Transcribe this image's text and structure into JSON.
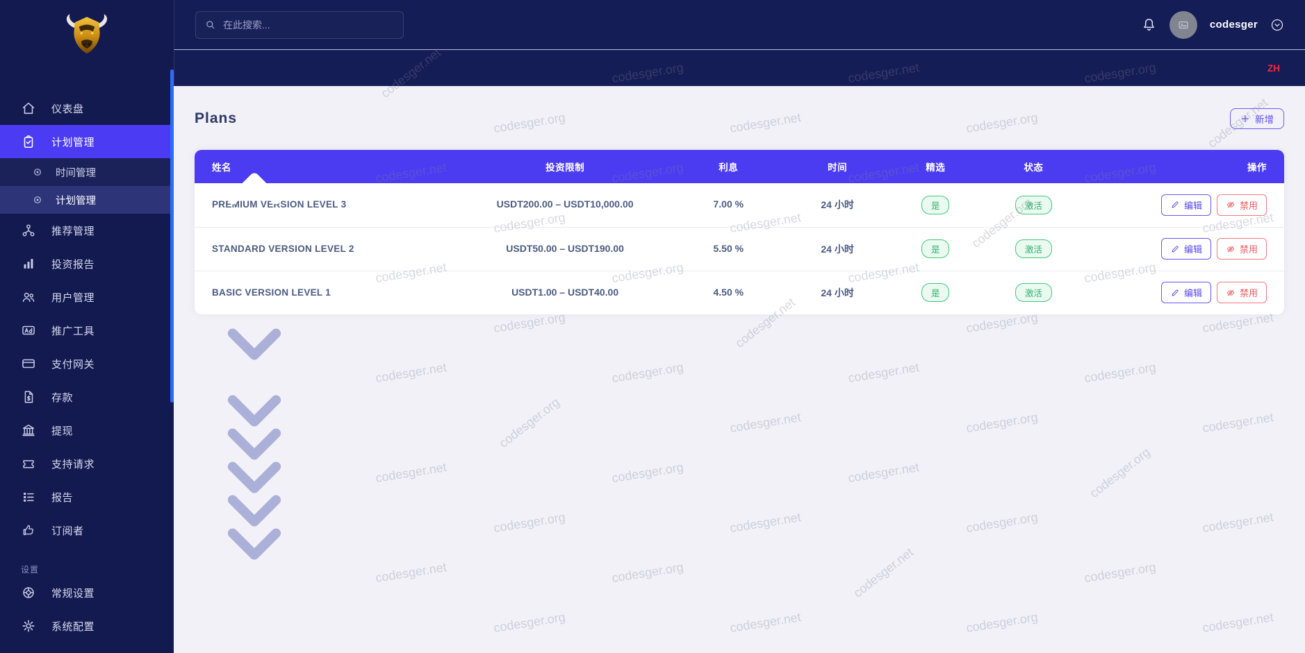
{
  "app": {
    "language_badge": "ZH",
    "watermarks": [
      "codesger.net",
      "codesger.org"
    ]
  },
  "header": {
    "search_placeholder": "在此搜索...",
    "username": "codesger"
  },
  "sidebar": {
    "items": [
      {
        "label": "仪表盘"
      },
      {
        "label": "计划管理"
      },
      {
        "label": "推荐管理"
      },
      {
        "label": "投资报告"
      },
      {
        "label": "用户管理"
      },
      {
        "label": "推广工具"
      },
      {
        "label": "支付网关"
      },
      {
        "label": "存款"
      },
      {
        "label": "提现"
      },
      {
        "label": "支持请求"
      },
      {
        "label": "报告"
      },
      {
        "label": "订阅者"
      }
    ],
    "submenu": [
      {
        "label": "时间管理"
      },
      {
        "label": "计划管理"
      }
    ],
    "section_label": "设置",
    "settings_items": [
      {
        "label": "常规设置"
      },
      {
        "label": "系统配置"
      }
    ]
  },
  "page": {
    "title": "Plans",
    "add_button_label": "新增"
  },
  "table": {
    "columns": [
      "姓名",
      "投资限制",
      "利息",
      "时间",
      "精选",
      "状态",
      "操作"
    ],
    "rows": [
      {
        "name": "PREMIUM VERSION LEVEL 3",
        "limit": "USDT200.00 – USDT10,000.00",
        "interest": "7.00 %",
        "time": "24 小时",
        "featured": "是",
        "status": "激活"
      },
      {
        "name": "STANDARD VERSION LEVEL 2",
        "limit": "USDT50.00 – USDT190.00",
        "interest": "5.50 %",
        "time": "24 小时",
        "featured": "是",
        "status": "激活"
      },
      {
        "name": "BASIC VERSION LEVEL 1",
        "limit": "USDT1.00 – USDT40.00",
        "interest": "4.50 %",
        "time": "24 小时",
        "featured": "是",
        "status": "激活"
      }
    ],
    "action_labels": {
      "edit": "编辑",
      "disable": "禁用"
    }
  },
  "colors": {
    "sidebar_bg": "#121a50",
    "header_bg": "#151d56",
    "accent": "#4b3cf1",
    "active_parent_bg": "#4b3bf2",
    "active_submenu_bg": "#2d3478",
    "success": "#3ec878",
    "danger": "#f05b60",
    "language_badge": "#ee2d3a",
    "content_bg": "#f2f1f7"
  }
}
